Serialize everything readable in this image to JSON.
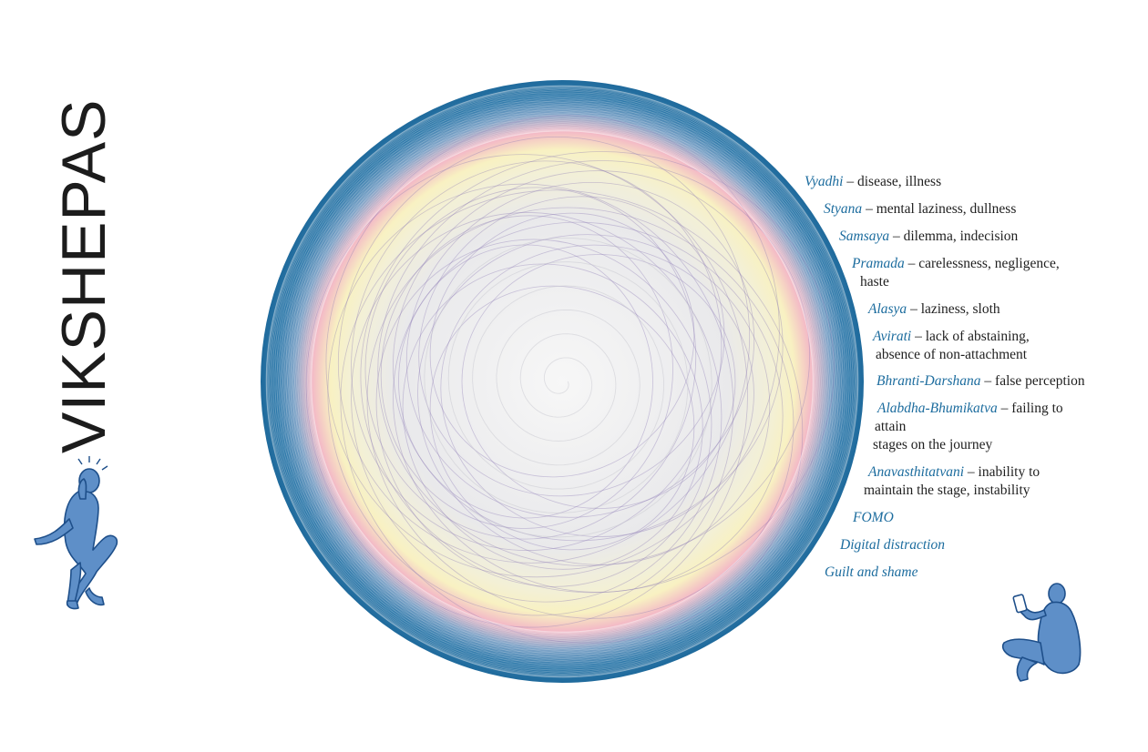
{
  "title": "VIKSHEPAS",
  "colors": {
    "outer_blue": "#1f6fa0",
    "pink": "#f2b7c4",
    "yellow": "#f7f1c6",
    "center_grey": "#f2f2f2",
    "line_purple": "#8c7cb5",
    "term_blue": "#1c6c9e",
    "figure_blue": "#5e8fc8"
  },
  "figures": [
    {
      "name": "person-holding-head-icon",
      "description_visible": false
    },
    {
      "name": "person-with-phone-icon",
      "description_visible": false
    }
  ],
  "items": [
    {
      "term": "Vyadhi",
      "sep": " – ",
      "lines": [
        "disease, illness"
      ]
    },
    {
      "term": "Styana",
      "sep": " – ",
      "lines": [
        "mental laziness, dullness"
      ]
    },
    {
      "term": "Samsaya",
      "sep": " – ",
      "lines": [
        "dilemma, indecision"
      ]
    },
    {
      "term": "Pramada",
      "sep": " – ",
      "lines": [
        "carelessness, negligence,",
        "haste"
      ]
    },
    {
      "term": "Alasya",
      "sep": " – ",
      "lines": [
        "laziness, sloth"
      ]
    },
    {
      "term": "Avirati",
      "sep": " – ",
      "lines": [
        "lack of abstaining,",
        "absence of non-attachment"
      ]
    },
    {
      "term": "Bhranti-Darshana",
      "sep": " – ",
      "lines": [
        "false perception"
      ]
    },
    {
      "term": "Alabdha-Bhumikatva",
      "sep": " – ",
      "lines": [
        "failing to",
        "attain",
        "stages on the journey"
      ]
    },
    {
      "term": "Anavasthitatvani",
      "sep": " – ",
      "lines": [
        "inability to",
        "maintain the stage, instability"
      ]
    },
    {
      "term": "FOMO",
      "sep": "",
      "lines": [
        ""
      ]
    },
    {
      "term": "Digital distraction",
      "sep": "",
      "lines": [
        ""
      ]
    },
    {
      "term": "Guilt and shame",
      "sep": "",
      "lines": [
        ""
      ]
    }
  ]
}
